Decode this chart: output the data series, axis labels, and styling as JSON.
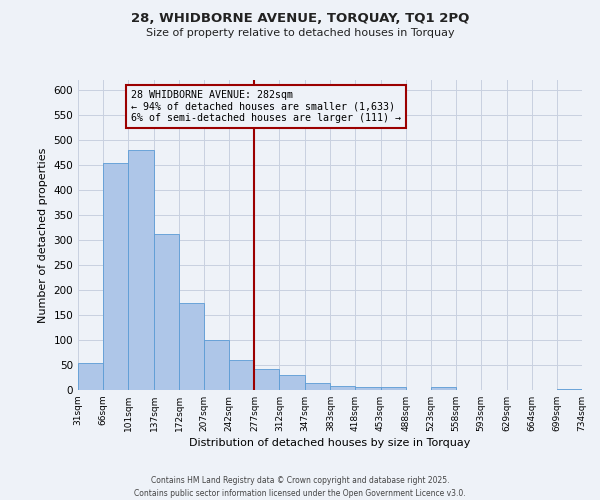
{
  "title": "28, WHIDBORNE AVENUE, TORQUAY, TQ1 2PQ",
  "subtitle": "Size of property relative to detached houses in Torquay",
  "xlabel": "Distribution of detached houses by size in Torquay",
  "ylabel": "Number of detached properties",
  "bin_edges": [
    31,
    66,
    101,
    137,
    172,
    207,
    242,
    277,
    312,
    347,
    383,
    418,
    453,
    488,
    523,
    558,
    593,
    629,
    664,
    699,
    734
  ],
  "bar_heights": [
    55,
    455,
    480,
    312,
    175,
    100,
    60,
    43,
    30,
    14,
    8,
    6,
    6,
    0,
    6,
    0,
    0,
    0,
    0,
    2
  ],
  "bar_color": "#aec6e8",
  "bar_edge_color": "#5b9bd5",
  "vline_x": 277,
  "vline_color": "#9b0000",
  "annotation_line1": "28 WHIDBORNE AVENUE: 282sqm",
  "annotation_line2": "← 94% of detached houses are smaller (1,633)",
  "annotation_line3": "6% of semi-detached houses are larger (111) →",
  "annotation_box_edge_color": "#9b0000",
  "background_color": "#eef2f8",
  "grid_color": "#c8d0e0",
  "ylim": [
    0,
    620
  ],
  "yticks": [
    0,
    50,
    100,
    150,
    200,
    250,
    300,
    350,
    400,
    450,
    500,
    550,
    600
  ],
  "footer_line1": "Contains HM Land Registry data © Crown copyright and database right 2025.",
  "footer_line2": "Contains public sector information licensed under the Open Government Licence v3.0."
}
